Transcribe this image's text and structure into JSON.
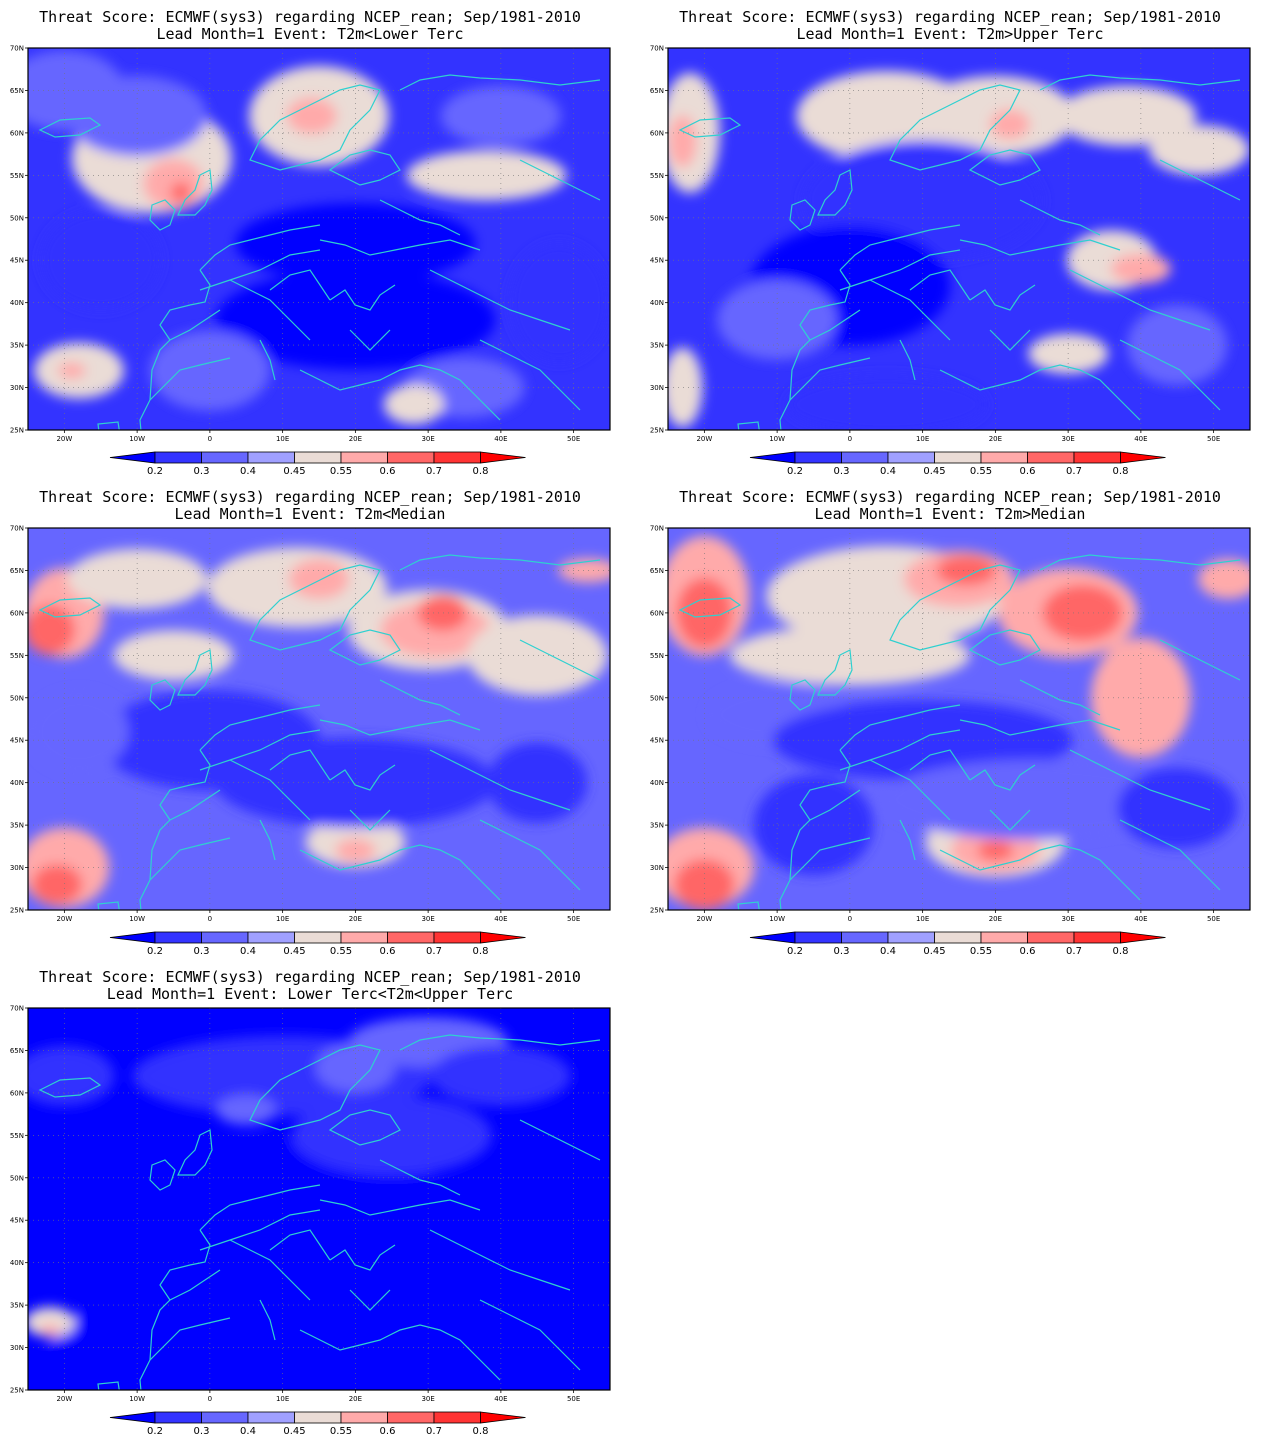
{
  "colorscale": {
    "levels": [
      "0.2",
      "0.3",
      "0.4",
      "0.45",
      "0.55",
      "0.6",
      "0.7",
      "0.8"
    ],
    "colors": [
      "#0000ff",
      "#3333ff",
      "#6666ff",
      "#a0a0ff",
      "#eadcd6",
      "#ffaaaa",
      "#ff6666",
      "#ff3333",
      "#ff0000"
    ]
  },
  "xticks": [
    "20W",
    "10W",
    "0",
    "10E",
    "20E",
    "30E",
    "40E",
    "50E"
  ],
  "yticks": [
    "70N",
    "65N",
    "60N",
    "55N",
    "50N",
    "45N",
    "40N",
    "35N",
    "30N",
    "25N"
  ],
  "coastline_color": "#2fd0d0",
  "chart_data": [
    {
      "type": "heatmap",
      "title": "Threat Score: ECMWF(sys3) regarding NCEP_rean; Sep/1981-2010",
      "subtitle": "Lead Month=1 Event: T2m<Lower Terc",
      "xlim": [
        "25W",
        "55E"
      ],
      "ylim": [
        "25N",
        "70N"
      ],
      "colorbar": "bottom"
    },
    {
      "type": "heatmap",
      "title": "Threat Score: ECMWF(sys3) regarding NCEP_rean; Sep/1981-2010",
      "subtitle": "Lead Month=1 Event: T2m>Upper Terc",
      "xlim": [
        "25W",
        "55E"
      ],
      "ylim": [
        "25N",
        "70N"
      ],
      "colorbar": "bottom"
    },
    {
      "type": "heatmap",
      "title": "Threat Score: ECMWF(sys3) regarding NCEP_rean; Sep/1981-2010",
      "subtitle": "Lead Month=1 Event: T2m<Median",
      "xlim": [
        "25W",
        "55E"
      ],
      "ylim": [
        "25N",
        "70N"
      ],
      "colorbar": "bottom"
    },
    {
      "type": "heatmap",
      "title": "Threat Score: ECMWF(sys3) regarding NCEP_rean; Sep/1981-2010",
      "subtitle": "Lead Month=1 Event: T2m>Median",
      "xlim": [
        "25W",
        "55E"
      ],
      "ylim": [
        "25N",
        "70N"
      ],
      "colorbar": "bottom"
    },
    {
      "type": "heatmap",
      "title": "Threat Score: ECMWF(sys3) regarding NCEP_rean; Sep/1981-2010",
      "subtitle": "Lead Month=1 Event: Lower Terc<T2m<Upper Terc",
      "xlim": [
        "25W",
        "55E"
      ],
      "ylim": [
        "25N",
        "70N"
      ],
      "colorbar": "bottom"
    }
  ]
}
